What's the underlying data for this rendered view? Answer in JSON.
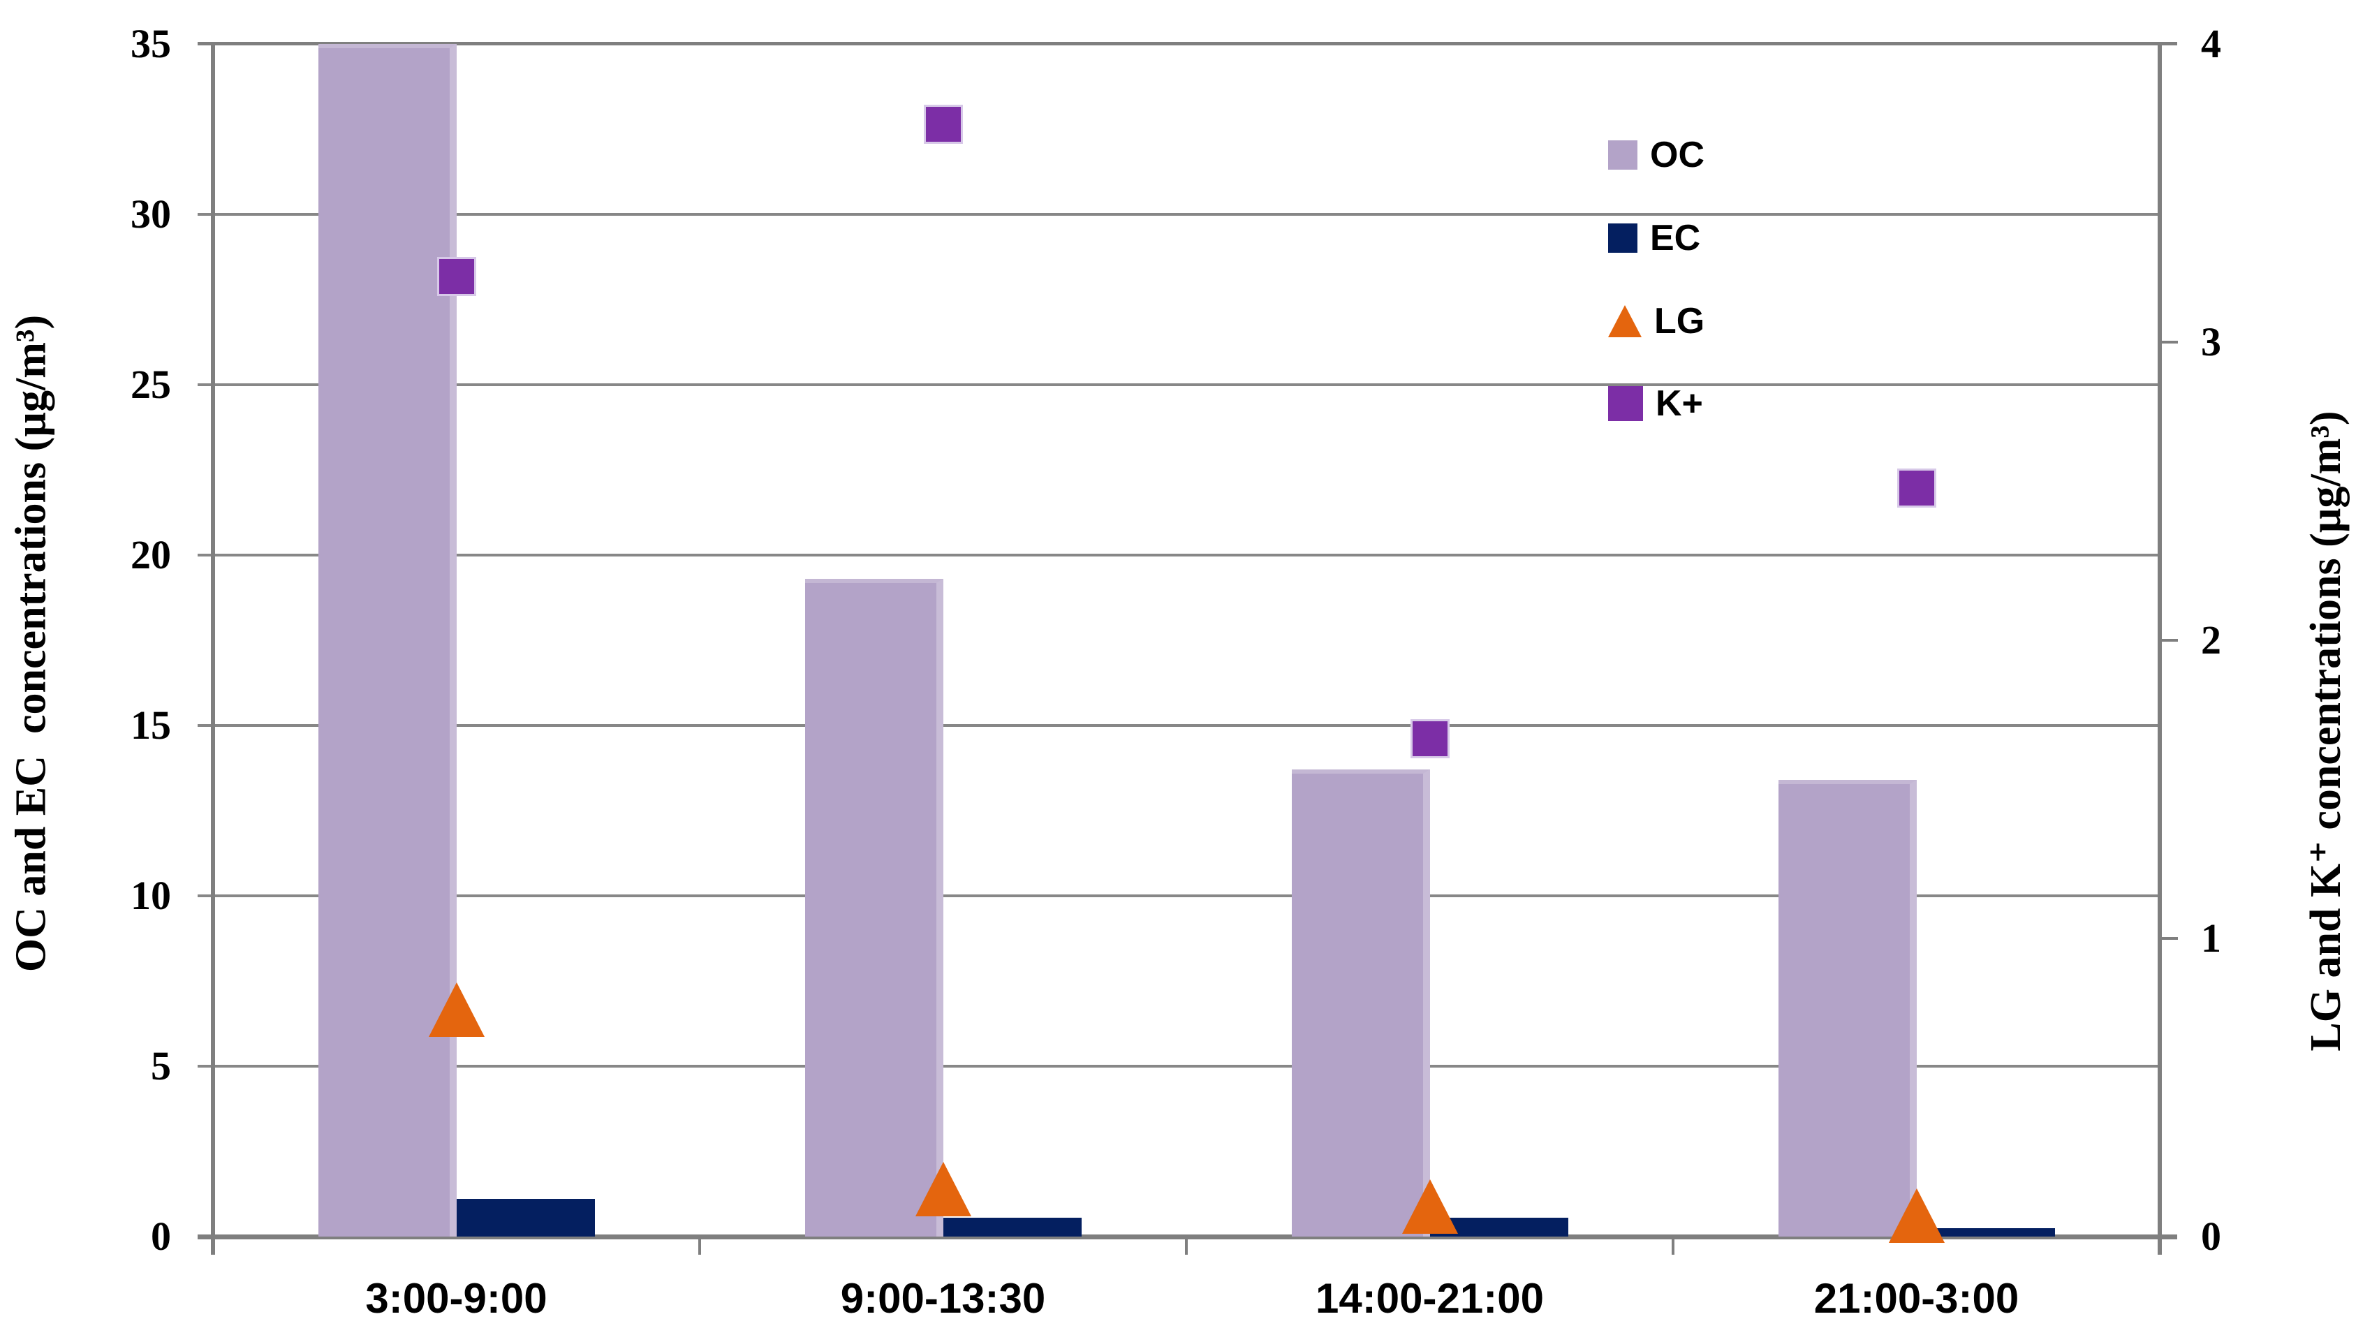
{
  "chart_data": {
    "type": "combo-bar-scatter",
    "categories": [
      "3:00-9:00",
      "9:00-13:30",
      "14:00-21:00",
      "21:00-3:00"
    ],
    "series": [
      {
        "name": "OC",
        "type": "bar",
        "axis": "left",
        "marker": "square",
        "color": "#b3a3c8",
        "values": [
          35,
          19.3,
          13.7,
          13.4
        ]
      },
      {
        "name": "EC",
        "type": "bar",
        "axis": "left",
        "marker": "square",
        "color": "#041f60",
        "values": [
          1.1,
          0.55,
          0.55,
          0.25
        ]
      },
      {
        "name": "LG",
        "type": "scatter",
        "axis": "right",
        "marker": "triangle",
        "color": "#e4650e",
        "values": [
          0.76,
          0.16,
          0.1,
          0.07
        ]
      },
      {
        "name": "K+",
        "type": "scatter",
        "axis": "right",
        "marker": "square",
        "color": "#7c2ea6",
        "values": [
          3.22,
          3.73,
          1.67,
          2.51
        ]
      }
    ],
    "left_axis": {
      "title": "OC and EC  concentrations (µg/m³)",
      "min": 0,
      "max": 35,
      "step": 5,
      "ticks": [
        35,
        30,
        25,
        20,
        15,
        10,
        5,
        0
      ]
    },
    "right_axis": {
      "title": "LG and K⁺ concentrations (µg/m³)",
      "min": 0,
      "max": 4,
      "step": 1,
      "ticks": [
        4,
        3,
        2,
        1,
        0
      ]
    },
    "legend": [
      "OC",
      "EC",
      "LG",
      "K+"
    ],
    "legend_position": "inside-top-right",
    "grid": true,
    "colors": {
      "gridline": "#878787",
      "axis": "#7f7f7f",
      "text": "#000000",
      "oc": "#b3a3c8",
      "ec": "#041f60",
      "lg": "#e4650e",
      "kplus": "#7c2ea6"
    },
    "notes": "OC bar for 3:00-9:00 reaches the axis maximum (35) and is clipped at the plot top."
  }
}
